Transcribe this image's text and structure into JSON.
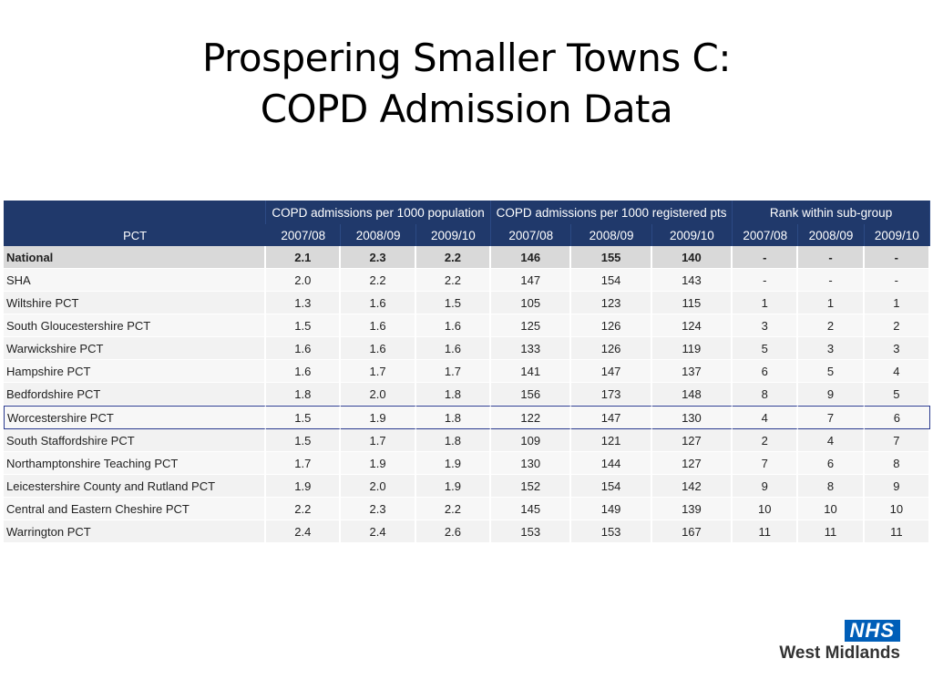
{
  "slide": {
    "title_line1": "Prospering Smaller Towns C:",
    "title_line2": "COPD Admission Data"
  },
  "table": {
    "group_headers": [
      "COPD admissions per 1000 population",
      "COPD admissions per 1000 registered pts",
      "Rank within sub-group"
    ],
    "pct_header": "PCT",
    "year_headers": [
      "2007/08",
      "2008/09",
      "2009/10",
      "2007/08",
      "2008/09",
      "2009/10",
      "2007/08",
      "2008/09",
      "2009/10"
    ],
    "rows": [
      {
        "name": "National",
        "values": [
          "2.1",
          "2.3",
          "2.2",
          "146",
          "155",
          "140",
          "-",
          "-",
          "-"
        ]
      },
      {
        "name": "SHA",
        "values": [
          "2.0",
          "2.2",
          "2.2",
          "147",
          "154",
          "143",
          "-",
          "-",
          "-"
        ]
      },
      {
        "name": "Wiltshire PCT",
        "values": [
          "1.3",
          "1.6",
          "1.5",
          "105",
          "123",
          "115",
          "1",
          "1",
          "1"
        ]
      },
      {
        "name": "South Gloucestershire PCT",
        "values": [
          "1.5",
          "1.6",
          "1.6",
          "125",
          "126",
          "124",
          "3",
          "2",
          "2"
        ]
      },
      {
        "name": "Warwickshire PCT",
        "values": [
          "1.6",
          "1.6",
          "1.6",
          "133",
          "126",
          "119",
          "5",
          "3",
          "3"
        ]
      },
      {
        "name": "Hampshire PCT",
        "values": [
          "1.6",
          "1.7",
          "1.7",
          "141",
          "147",
          "137",
          "6",
          "5",
          "4"
        ]
      },
      {
        "name": "Bedfordshire PCT",
        "values": [
          "1.8",
          "2.0",
          "1.8",
          "156",
          "173",
          "148",
          "8",
          "9",
          "5"
        ]
      },
      {
        "name": "Worcestershire PCT",
        "values": [
          "1.5",
          "1.9",
          "1.8",
          "122",
          "147",
          "130",
          "4",
          "7",
          "6"
        ]
      },
      {
        "name": "South Staffordshire PCT",
        "values": [
          "1.5",
          "1.7",
          "1.8",
          "109",
          "121",
          "127",
          "2",
          "4",
          "7"
        ]
      },
      {
        "name": "Northamptonshire Teaching PCT",
        "values": [
          "1.7",
          "1.9",
          "1.9",
          "130",
          "144",
          "127",
          "7",
          "6",
          "8"
        ]
      },
      {
        "name": "Leicestershire County and Rutland PCT",
        "values": [
          "1.9",
          "2.0",
          "1.9",
          "152",
          "154",
          "142",
          "9",
          "8",
          "9"
        ]
      },
      {
        "name": "Central and Eastern Cheshire PCT",
        "values": [
          "2.2",
          "2.3",
          "2.2",
          "145",
          "149",
          "139",
          "10",
          "10",
          "10"
        ]
      },
      {
        "name": "Warrington PCT",
        "values": [
          "2.4",
          "2.4",
          "2.6",
          "153",
          "153",
          "167",
          "11",
          "11",
          "11"
        ]
      }
    ]
  },
  "logo": {
    "badge": "NHS",
    "region": "West Midlands",
    "brand_color": "#005eb8"
  },
  "colors": {
    "header_bg": "#20396b",
    "highlight_border": "#2a3a8f"
  }
}
